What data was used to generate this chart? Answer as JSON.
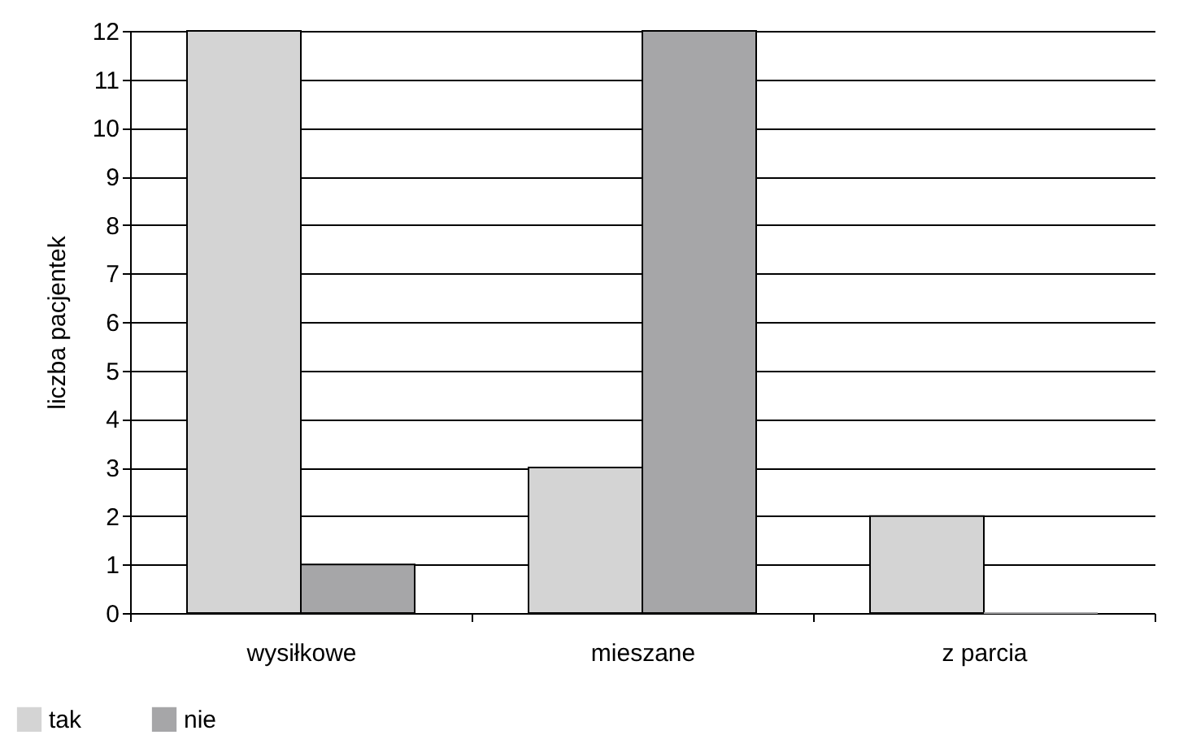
{
  "chart_data": {
    "type": "bar",
    "ylabel": "liczba pacjentek",
    "categories": [
      "wysiłkowe",
      "mieszane",
      "z parcia"
    ],
    "series": [
      {
        "name": "tak",
        "color": "#d4d4d4",
        "values": [
          12,
          3,
          2
        ]
      },
      {
        "name": "nie",
        "color": "#a6a6a8",
        "values": [
          1,
          12,
          0
        ]
      }
    ],
    "ylim": [
      0,
      12
    ],
    "yticks": [
      0,
      1,
      2,
      3,
      4,
      5,
      6,
      7,
      8,
      9,
      10,
      11,
      12
    ],
    "grid": "y",
    "legend": "bottom left"
  }
}
